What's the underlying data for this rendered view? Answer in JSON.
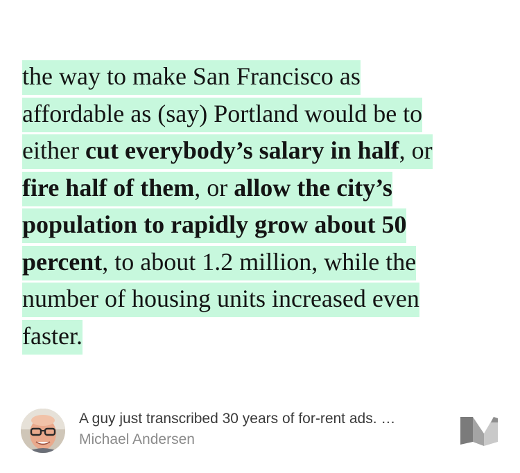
{
  "quote": {
    "segments": [
      {
        "text": "the way to make San Francisco as affordable as (say) Portland would be to either ",
        "bold": false
      },
      {
        "text": "cut everybody’s salary in half",
        "bold": true
      },
      {
        "text": ", or ",
        "bold": false
      },
      {
        "text": "fire half of them",
        "bold": true
      },
      {
        "text": ", or ",
        "bold": false
      },
      {
        "text": "allow the city’s population to rapidly grow about 50 percent",
        "bold": true
      },
      {
        "text": ", to about 1.2 million, while the number of housing units increased even faster.",
        "bold": false
      }
    ]
  },
  "source": {
    "article_title": "A guy just transcribed 30 years of for-rent ads. …",
    "author": "Michael Andersen",
    "avatar_icon": "author-avatar-photo",
    "logo_icon": "medium-logo-icon"
  },
  "colors": {
    "highlight": "#c7f8dd",
    "text": "#141414",
    "title": "#3a3a3a",
    "author": "#8a8a8a"
  }
}
